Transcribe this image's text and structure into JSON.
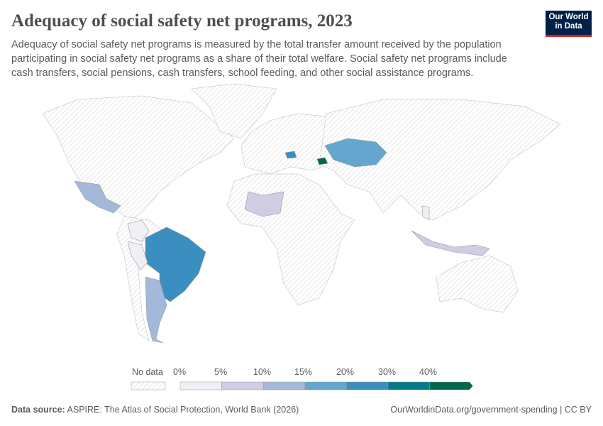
{
  "title": "Adequacy of social safety net programs, 2023",
  "subtitle": "Adequacy of social safety net programs is measured by the total transfer amount received by the population participating in social safety net programs as a share of their total welfare. Social safety net programs include cash transfers, social pensions, cash transfers, school feeding, and other social assistance programs.",
  "logo": {
    "line1": "Our World",
    "line2": "in Data"
  },
  "legend": {
    "no_data": "No data",
    "ticks": [
      "0%",
      "5%",
      "10%",
      "15%",
      "20%",
      "30%",
      "40%"
    ],
    "colors": [
      "#f2eef6",
      "#cfcde4",
      "#a4b9d9",
      "#64a6ce",
      "#3b8fc0",
      "#007a87",
      "#00674f"
    ]
  },
  "footer": {
    "source_label": "Data source:",
    "source": "ASPIRE: The Atlas of Social Protection, World Bank (2026)",
    "url": "OurWorldinData.org/government-spending | CC BY"
  }
}
